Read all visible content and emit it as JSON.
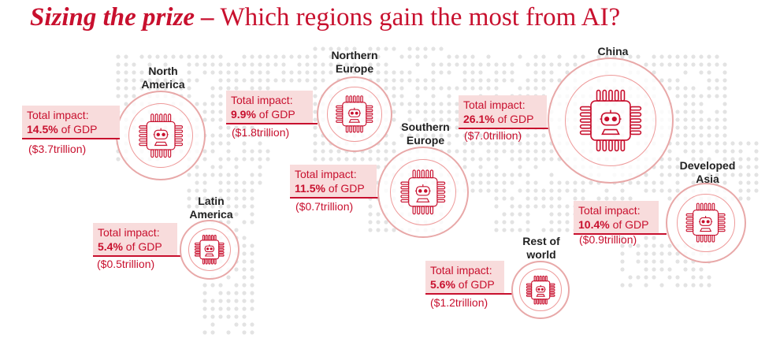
{
  "title": {
    "bold": "Sizing the prize –",
    "rest": " Which regions gain the most from AI?"
  },
  "colors": {
    "accent": "#c8102e",
    "box": "#f8dcdc",
    "map_dots": "#e3e3e3"
  },
  "icon": "ai-chip-robot-icon",
  "regions": [
    {
      "id": "north-america",
      "name": "North\nAmerica",
      "impact_label": "Total impact:",
      "pct": "14.5%",
      "of_gdp": " of GDP",
      "trillion": "($3.7trillion)"
    },
    {
      "id": "northern-europe",
      "name": "Northern\nEurope",
      "impact_label": "Total impact:",
      "pct": "9.9%",
      "of_gdp": " of GDP",
      "trillion": "($1.8trillion)"
    },
    {
      "id": "southern-europe",
      "name": "Southern\nEurope",
      "impact_label": "Total impact:",
      "pct": "11.5%",
      "of_gdp": " of GDP",
      "trillion": "($0.7trillion)"
    },
    {
      "id": "china",
      "name": "China",
      "impact_label": "Total impact:",
      "pct": "26.1%",
      "of_gdp": " of GDP",
      "trillion": "($7.0trillion)"
    },
    {
      "id": "developed-asia",
      "name": "Developed\nAsia",
      "impact_label": "Total impact:",
      "pct": "10.4%",
      "of_gdp": " of GDP",
      "trillion": "($0.9trillion)"
    },
    {
      "id": "latin-america",
      "name": "Latin\nAmerica",
      "impact_label": "Total impact:",
      "pct": "5.4%",
      "of_gdp": " of GDP",
      "trillion": "($0.5trillion)"
    },
    {
      "id": "rest-of-world",
      "name": "Rest of\nworld",
      "impact_label": "Total impact:",
      "pct": "5.6%",
      "of_gdp": " of GDP",
      "trillion": "($1.2trillion)"
    }
  ]
}
